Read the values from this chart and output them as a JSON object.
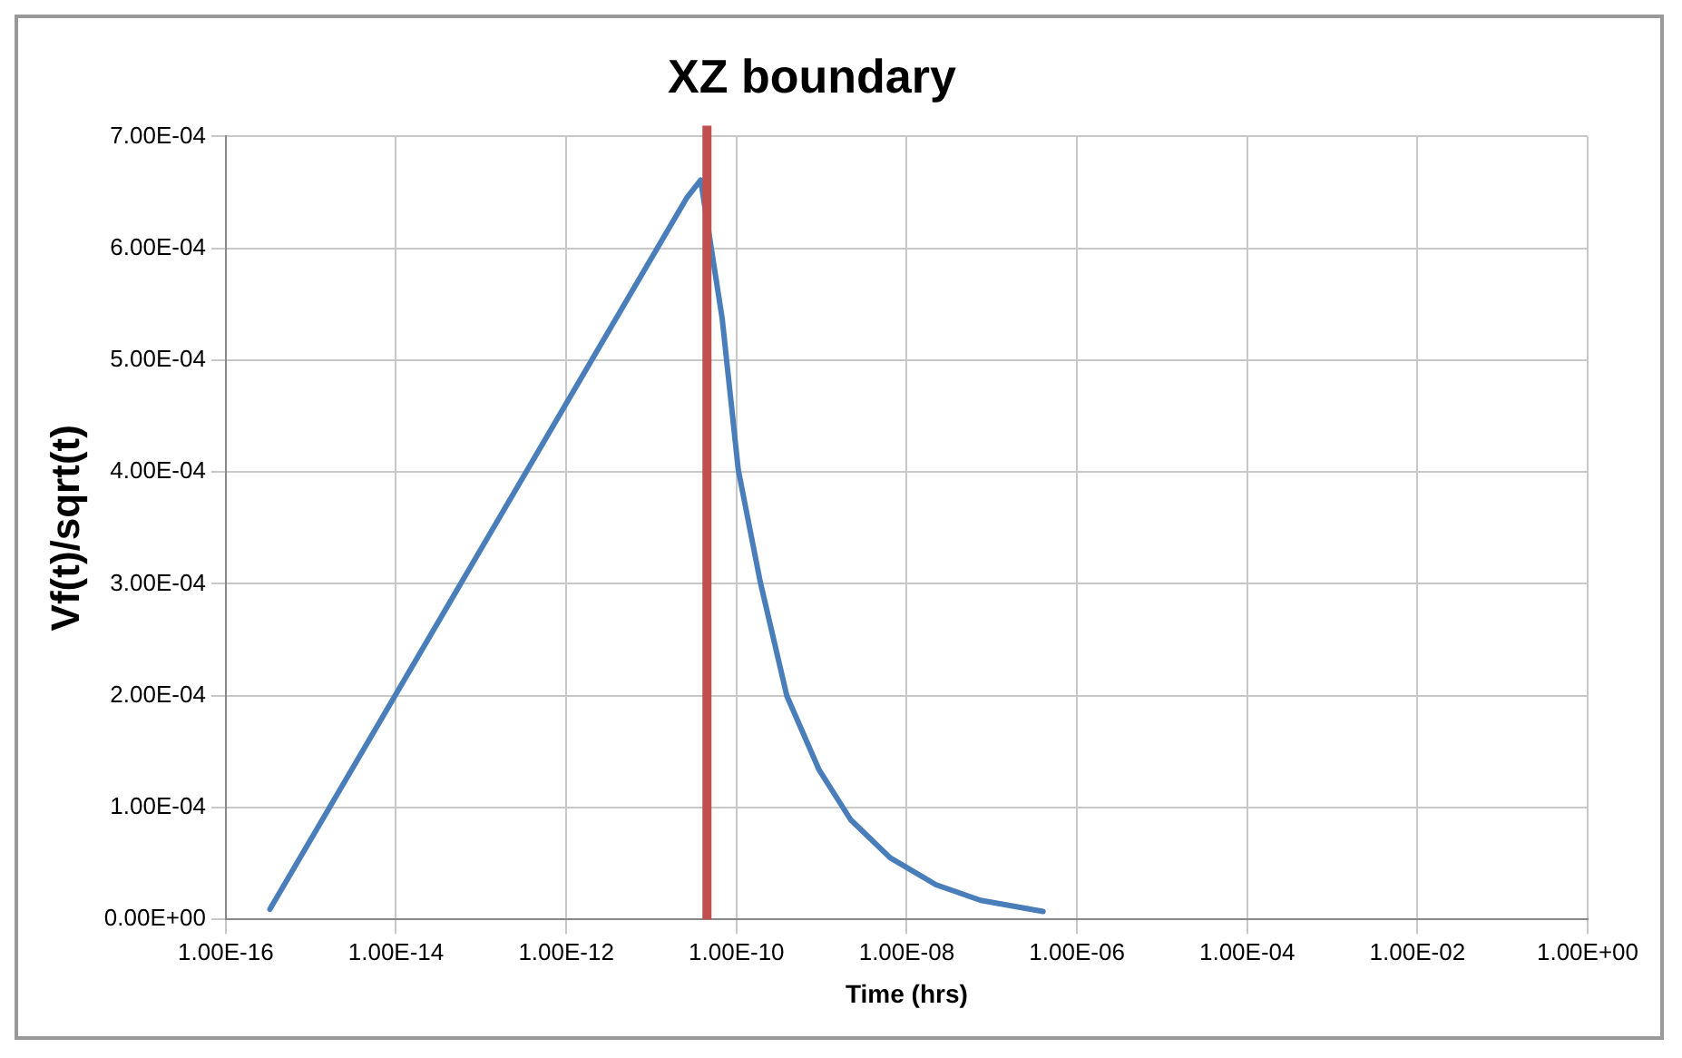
{
  "chart_data": {
    "type": "line",
    "title": "XZ boundary",
    "xlabel": "Time (hrs)",
    "ylabel": "Vf(t)/sqrt(t)",
    "log": "x",
    "grid": true,
    "legend": false,
    "marker": "none",
    "xlim": [
      1e-16,
      1
    ],
    "xticks": [
      {
        "value": 1e-16,
        "label": "1.00E-16"
      },
      {
        "value": 1e-14,
        "label": "1.00E-14"
      },
      {
        "value": 1e-12,
        "label": "1.00E-12"
      },
      {
        "value": 1e-10,
        "label": "1.00E-10"
      },
      {
        "value": 1e-08,
        "label": "1.00E-08"
      },
      {
        "value": 1e-06,
        "label": "1.00E-06"
      },
      {
        "value": 0.0001,
        "label": "1.00E-04"
      },
      {
        "value": 0.01,
        "label": "1.00E-02"
      },
      {
        "value": 1,
        "label": "1.00E+00"
      }
    ],
    "ylim": [
      0,
      0.0007
    ],
    "yticks": [
      {
        "value": 0,
        "label": "0.00E+00"
      },
      {
        "value": 0.0001,
        "label": "1.00E-04"
      },
      {
        "value": 0.0002,
        "label": "2.00E-04"
      },
      {
        "value": 0.0003,
        "label": "3.00E-04"
      },
      {
        "value": 0.0004,
        "label": "4.00E-04"
      },
      {
        "value": 0.0005,
        "label": "5.00E-04"
      },
      {
        "value": 0.0006,
        "label": "6.00E-04"
      },
      {
        "value": 0.0007,
        "label": "7.00E-04"
      }
    ],
    "x": [
      3.3e-16,
      3.5e-13,
      2.6e-11,
      3.8e-11,
      6.8e-11,
      1.05e-10,
      1.9e-10,
      3.9e-10,
      9.3e-10,
      2.2e-09,
      6.4e-09,
      2.2e-08,
      7.4e-08,
      4e-07
    ],
    "series": [
      {
        "color": "#4a7ebb",
        "values": [
          9e-06,
          0.000402,
          0.000645,
          0.000661,
          0.000537,
          0.000402,
          0.000302,
          0.0002,
          0.000134,
          8.9e-05,
          5.5e-05,
          3.1e-05,
          1.7e-05,
          7e-06
        ]
      }
    ],
    "ref_lines": [
      {
        "axis": "x",
        "value": 4.5e-11,
        "color": "#c0504d"
      }
    ]
  }
}
